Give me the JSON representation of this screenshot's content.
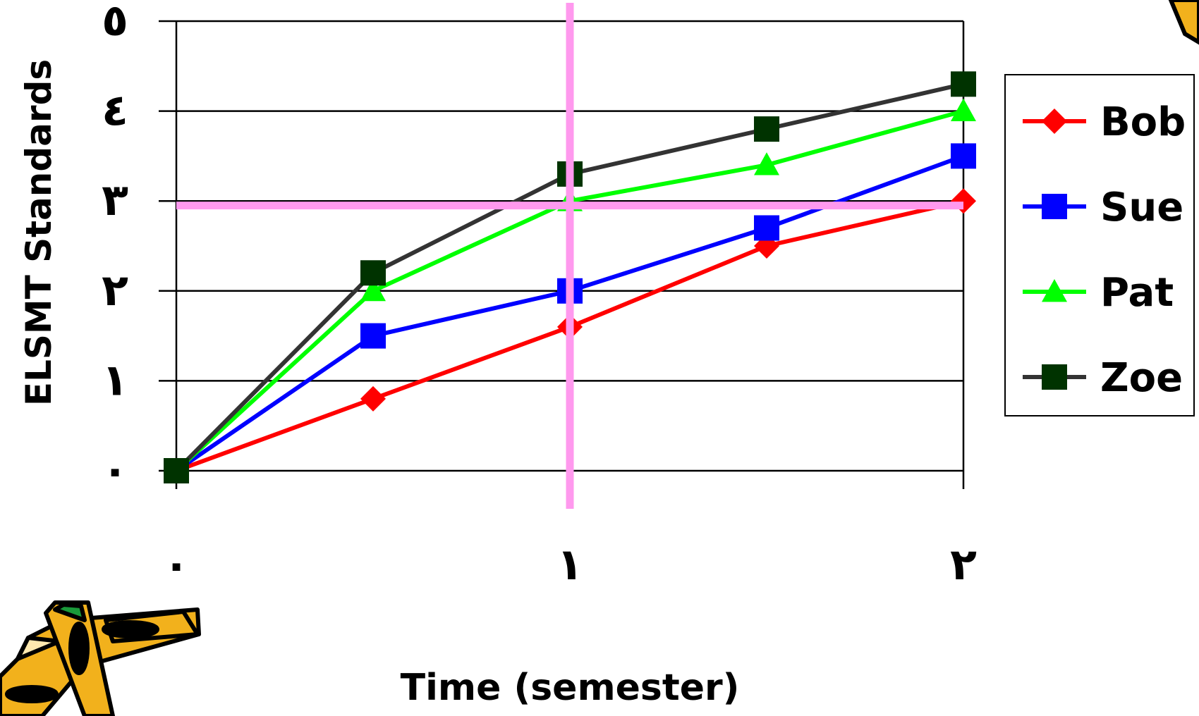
{
  "chart_data": {
    "type": "line",
    "title": "",
    "xlabel": "Time (semester)",
    "ylabel": "ELSMT Standards",
    "x": [
      0,
      0.5,
      1,
      1.5,
      2
    ],
    "x_ticks": [
      {
        "value": 0,
        "label": "٠"
      },
      {
        "value": 1,
        "label": "١"
      },
      {
        "value": 2,
        "label": "٢"
      }
    ],
    "y_ticks": [
      {
        "value": 0,
        "label": "٠"
      },
      {
        "value": 1,
        "label": "١"
      },
      {
        "value": 2,
        "label": "٢"
      },
      {
        "value": 3,
        "label": "٣"
      },
      {
        "value": 4,
        "label": "٤"
      },
      {
        "value": 5,
        "label": "٥"
      }
    ],
    "xlim": [
      0,
      2
    ],
    "ylim": [
      0,
      5
    ],
    "grid": "horizontal",
    "legend_position": "right",
    "series": [
      {
        "name": "Bob",
        "color": "#ff0000",
        "marker": "diamond",
        "values": [
          0,
          0.8,
          1.6,
          2.5,
          3.0
        ]
      },
      {
        "name": "Sue",
        "color": "#0000ff",
        "marker": "square",
        "values": [
          0,
          1.5,
          2.0,
          2.7,
          3.5
        ]
      },
      {
        "name": "Pat",
        "color": "#00ff00",
        "marker": "triangle",
        "values": [
          0,
          2.0,
          3.0,
          3.4,
          4.0
        ]
      },
      {
        "name": "Zoe",
        "color": "#333333",
        "marker_color": "#003300",
        "marker": "square",
        "values": [
          0,
          2.2,
          3.3,
          3.8,
          4.3
        ]
      }
    ],
    "reference_lines": {
      "color": "#ff99ee",
      "horizontal_y": 2.95,
      "vertical_x": 1
    }
  }
}
